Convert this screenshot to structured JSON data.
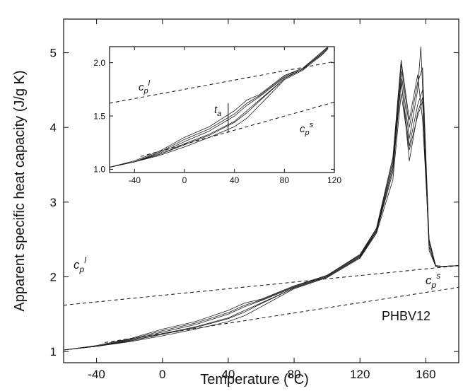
{
  "chart_data": [
    {
      "type": "line",
      "xlabel": "Temperature (°C)",
      "ylabel": "Apparent specific heat capacity (J/g K)",
      "xlim": [
        -60,
        180
      ],
      "ylim": [
        0.85,
        5.45
      ],
      "xticks": [
        -40,
        0,
        40,
        80,
        120,
        160
      ],
      "yticks": [
        1,
        2,
        3,
        4,
        5
      ],
      "annotations": {
        "sample": "PHBV12",
        "cp_liquid": "c",
        "cp_liquid_sub": "p",
        "cp_liquid_sup": "l",
        "cp_solid": "c",
        "cp_solid_sub": "p",
        "cp_solid_sup": "s"
      },
      "reference_lines": [
        {
          "id": "cp_liquid",
          "x": [
            -60,
            180
          ],
          "y": [
            1.62,
            2.15
          ]
        },
        {
          "id": "cp_solid",
          "x": [
            -35,
            180
          ],
          "y": [
            1.12,
            1.86
          ]
        }
      ],
      "series": [
        {
          "x": [
            -60,
            -40,
            -20,
            0,
            20,
            40,
            50,
            60,
            80,
            100,
            120,
            130,
            140,
            145,
            150,
            155,
            158,
            162,
            166,
            170,
            180
          ],
          "y": [
            1.02,
            1.08,
            1.17,
            1.3,
            1.4,
            1.55,
            1.65,
            1.7,
            1.88,
            2.02,
            2.3,
            2.65,
            3.6,
            4.9,
            4.1,
            4.7,
            4.1,
            2.5,
            2.15,
            2.14,
            2.15
          ]
        },
        {
          "x": [
            -60,
            -40,
            -20,
            0,
            20,
            40,
            50,
            60,
            80,
            100,
            120,
            130,
            140,
            145,
            150,
            155,
            157,
            162,
            166,
            170,
            180
          ],
          "y": [
            1.02,
            1.07,
            1.15,
            1.26,
            1.36,
            1.5,
            1.6,
            1.68,
            1.86,
            2.01,
            2.28,
            2.62,
            3.5,
            4.75,
            3.85,
            4.5,
            5.08,
            2.45,
            2.15,
            2.14,
            2.15
          ]
        },
        {
          "x": [
            -60,
            -40,
            -20,
            0,
            20,
            40,
            50,
            60,
            80,
            100,
            120,
            130,
            140,
            145,
            150,
            155,
            158,
            162,
            166,
            170,
            180
          ],
          "y": [
            1.02,
            1.07,
            1.14,
            1.24,
            1.33,
            1.45,
            1.55,
            1.65,
            1.85,
            2.0,
            2.26,
            2.6,
            3.4,
            4.6,
            3.75,
            4.3,
            4.5,
            2.4,
            2.14,
            2.14,
            2.15
          ]
        },
        {
          "x": [
            -60,
            -40,
            -20,
            0,
            20,
            40,
            50,
            60,
            80,
            100,
            120,
            130,
            140,
            145,
            150,
            155,
            158,
            162,
            166,
            170,
            180
          ],
          "y": [
            1.02,
            1.07,
            1.13,
            1.21,
            1.3,
            1.4,
            1.48,
            1.6,
            1.84,
            1.99,
            2.25,
            2.58,
            3.3,
            4.45,
            3.7,
            4.15,
            4.35,
            2.35,
            2.14,
            2.14,
            2.15
          ]
        },
        {
          "x": [
            -60,
            -40,
            -20,
            0,
            20,
            40,
            50,
            60,
            80,
            100,
            120,
            130,
            140,
            145,
            150,
            155,
            158,
            162,
            166,
            170,
            180
          ],
          "y": [
            1.02,
            1.07,
            1.16,
            1.28,
            1.38,
            1.52,
            1.62,
            1.69,
            1.87,
            2.02,
            2.29,
            2.64,
            3.55,
            4.85,
            4.0,
            4.6,
            4.8,
            2.48,
            2.15,
            2.14,
            2.15
          ]
        },
        {
          "x": [
            -60,
            -40,
            -20,
            0,
            20,
            40,
            50,
            60,
            80,
            100,
            120,
            130,
            140,
            145,
            150,
            155,
            158,
            162,
            166,
            170,
            180
          ],
          "y": [
            1.02,
            1.07,
            1.14,
            1.23,
            1.32,
            1.44,
            1.53,
            1.64,
            1.85,
            2.0,
            2.27,
            2.61,
            3.45,
            4.65,
            3.55,
            4.2,
            4.4,
            2.4,
            2.14,
            2.14,
            2.15
          ]
        }
      ]
    },
    {
      "type": "line",
      "inset": true,
      "xlim": [
        -60,
        120
      ],
      "ylim": [
        0.97,
        2.15
      ],
      "xticks": [
        -40,
        0,
        40,
        80,
        120
      ],
      "yticks": [
        1.0,
        1.5,
        2.0
      ],
      "ytick_labels": [
        "1.0",
        "1.5",
        "2.0"
      ],
      "annotations": {
        "ta": "t",
        "ta_sub": "a",
        "cp_liquid": "c",
        "cp_liquid_sub": "p",
        "cp_liquid_sup": "l",
        "cp_solid": "c",
        "cp_solid_sub": "p",
        "cp_solid_sup": "s"
      },
      "marker": {
        "x": 35,
        "y": [
          1.34,
          1.62
        ]
      },
      "reference_lines": [
        {
          "id": "cp_liquid",
          "x": [
            -60,
            120
          ],
          "y": [
            1.62,
            2.01
          ]
        },
        {
          "id": "cp_solid",
          "x": [
            -35,
            120
          ],
          "y": [
            1.12,
            1.63
          ]
        }
      ],
      "series": [
        {
          "x": [
            -60,
            -40,
            -20,
            0,
            20,
            40,
            50,
            60,
            80,
            95,
            100,
            110,
            115
          ],
          "y": [
            1.02,
            1.08,
            1.17,
            1.3,
            1.4,
            1.55,
            1.65,
            1.7,
            1.88,
            1.95,
            2.0,
            2.1,
            2.15
          ]
        },
        {
          "x": [
            -60,
            -40,
            -20,
            0,
            20,
            40,
            50,
            60,
            80,
            95,
            100,
            110,
            115
          ],
          "y": [
            1.02,
            1.07,
            1.15,
            1.26,
            1.36,
            1.5,
            1.6,
            1.68,
            1.86,
            1.94,
            1.99,
            2.09,
            2.15
          ]
        },
        {
          "x": [
            -60,
            -40,
            -20,
            0,
            20,
            40,
            50,
            60,
            80,
            95,
            100,
            110,
            115
          ],
          "y": [
            1.02,
            1.07,
            1.14,
            1.24,
            1.33,
            1.45,
            1.55,
            1.65,
            1.85,
            1.94,
            1.99,
            2.08,
            2.14
          ]
        },
        {
          "x": [
            -60,
            -40,
            -20,
            0,
            20,
            40,
            50,
            60,
            80,
            95,
            100,
            110,
            115
          ],
          "y": [
            1.02,
            1.07,
            1.13,
            1.21,
            1.3,
            1.4,
            1.48,
            1.6,
            1.84,
            1.93,
            1.98,
            2.07,
            2.13
          ]
        },
        {
          "x": [
            -60,
            -40,
            -20,
            0,
            20,
            40,
            50,
            60,
            80,
            95,
            100,
            110,
            115
          ],
          "y": [
            1.02,
            1.07,
            1.16,
            1.28,
            1.38,
            1.52,
            1.62,
            1.69,
            1.87,
            1.95,
            2.0,
            2.1,
            2.15
          ]
        },
        {
          "x": [
            -60,
            -40,
            -20,
            0,
            20,
            40,
            50,
            60,
            80,
            95,
            100,
            110,
            115
          ],
          "y": [
            1.02,
            1.07,
            1.14,
            1.23,
            1.32,
            1.44,
            1.53,
            1.64,
            1.85,
            1.94,
            1.99,
            2.08,
            2.14
          ]
        }
      ]
    }
  ]
}
